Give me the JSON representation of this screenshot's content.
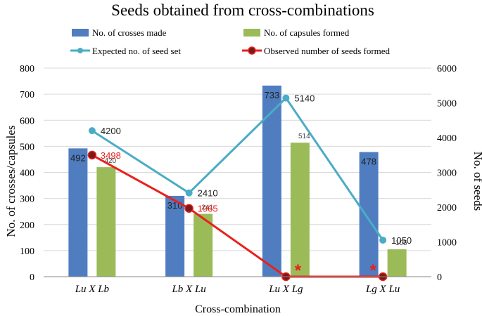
{
  "chart_data": {
    "type": "bar+line",
    "title": "Seeds obtained from cross-combinations",
    "xlabel": "Cross-combination",
    "ylabel_left": "No. of crosses/capsules",
    "ylabel_right": "No. of seeds",
    "categories": [
      "Lu X Lb",
      "Lb  X Lu",
      "Lu X Lg",
      "Lg X Lu"
    ],
    "ylim_left": [
      0,
      800
    ],
    "ylim_right": [
      0,
      6000
    ],
    "yticks_left": [
      "0",
      "100",
      "200",
      "300",
      "400",
      "500",
      "600",
      "700",
      "800"
    ],
    "yticks_right": [
      "0",
      "1000",
      "2000",
      "3000",
      "4000",
      "5000",
      "6000"
    ],
    "grid": true,
    "bar_series": [
      {
        "name": "No. of crosses made",
        "color": "#4F7DC0",
        "values": [
          492,
          310,
          733,
          478
        ],
        "labels": [
          "492",
          "310",
          "733",
          "478"
        ]
      },
      {
        "name": "No. of capsules formed",
        "color": "#9BBB59",
        "values": [
          420,
          241,
          514,
          105
        ],
        "labels": [
          "420",
          "241",
          "514",
          "105"
        ]
      }
    ],
    "line_series": [
      {
        "name": "Expected no. of seed set",
        "color": "#4BACC6",
        "values": [
          4200,
          2410,
          5140,
          1050
        ],
        "labels": [
          "4200",
          "2410",
          "5140",
          "1050"
        ]
      },
      {
        "name": "Observed number of seeds formed",
        "color": "#E8211D",
        "values": [
          3498,
          1965,
          0,
          0
        ],
        "labels": [
          "3498",
          "1965",
          "",
          ""
        ]
      }
    ],
    "annotations": [
      "*",
      "*"
    ],
    "legend_position": "top"
  }
}
